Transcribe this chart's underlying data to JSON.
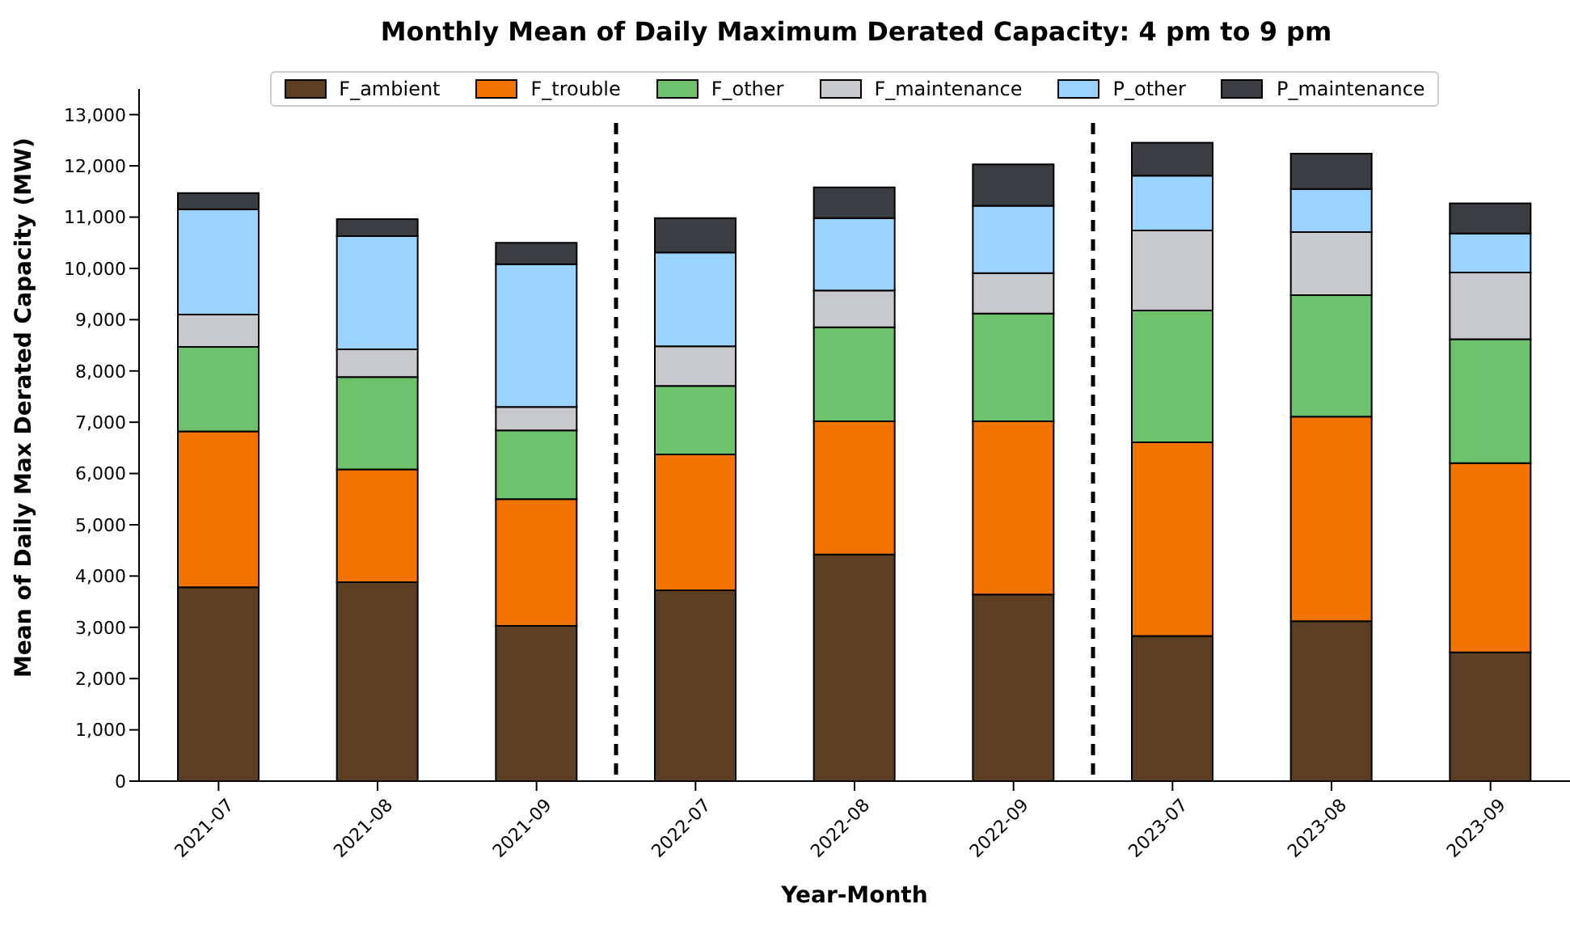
{
  "chart_data": {
    "type": "bar",
    "title": "Monthly Mean of Daily Maximum Derated Capacity: 4 pm to 9 pm",
    "xlabel": "Year-Month",
    "ylabel": "Mean of Daily Max Derated Capacity (MW)",
    "categories": [
      "2021-07",
      "2021-08",
      "2021-09",
      "2022-07",
      "2022-08",
      "2022-09",
      "2023-07",
      "2023-08",
      "2023-09"
    ],
    "stacked": true,
    "series": [
      {
        "name": "F_ambient",
        "color": "#5c3f22",
        "values": [
          3780,
          3880,
          3030,
          3720,
          4420,
          3640,
          2830,
          3120,
          2510
        ]
      },
      {
        "name": "F_trouble",
        "color": "#f37300",
        "values": [
          3040,
          2200,
          2470,
          2650,
          2600,
          3380,
          3780,
          3990,
          3690
        ]
      },
      {
        "name": "F_other",
        "color": "#6dc26b",
        "values": [
          1650,
          1800,
          1340,
          1340,
          1830,
          2100,
          2570,
          2370,
          2420
        ]
      },
      {
        "name": "F_maintenance",
        "color": "#c8c9cc",
        "values": [
          630,
          540,
          460,
          770,
          720,
          790,
          1560,
          1230,
          1300
        ]
      },
      {
        "name": "P_other",
        "color": "#9ad3ff",
        "values": [
          2050,
          2210,
          2780,
          1830,
          1410,
          1310,
          1070,
          840,
          760
        ]
      },
      {
        "name": "P_maintenance",
        "color": "#3a3d42",
        "values": [
          320,
          330,
          420,
          670,
          600,
          810,
          640,
          690,
          590
        ]
      }
    ],
    "ylim": [
      0,
      13500
    ],
    "yticks": [
      {
        "value": 0,
        "label": "0"
      },
      {
        "value": 1000,
        "label": "1,000"
      },
      {
        "value": 2000,
        "label": "2,000"
      },
      {
        "value": 3000,
        "label": "3,000"
      },
      {
        "value": 4000,
        "label": "4,000"
      },
      {
        "value": 5000,
        "label": "5,000"
      },
      {
        "value": 6000,
        "label": "6,000"
      },
      {
        "value": 7000,
        "label": "7,000"
      },
      {
        "value": 8000,
        "label": "8,000"
      },
      {
        "value": 9000,
        "label": "9,000"
      },
      {
        "value": 10000,
        "label": "10,000"
      },
      {
        "value": 11000,
        "label": "11,000"
      },
      {
        "value": 12000,
        "label": "12,000"
      },
      {
        "value": 13000,
        "label": "13,000"
      }
    ],
    "legend": "top",
    "grid": false
  }
}
